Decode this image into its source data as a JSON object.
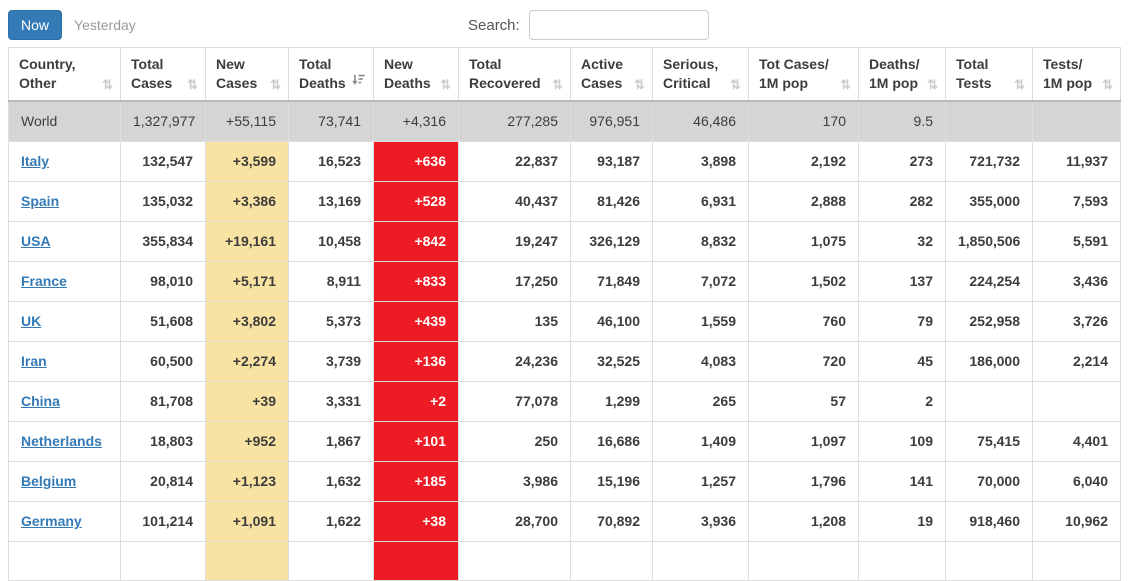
{
  "toolbar": {
    "now_label": "Now",
    "yesterday_label": "Yesterday",
    "search_label": "Search:",
    "search_value": ""
  },
  "icons": {
    "sort_unsorted": "⇅",
    "sort_active": "sort-descending"
  },
  "colors": {
    "accent": "#337ab7",
    "new_cases_bg": "#F8E3A3",
    "new_deaths_bg": "#ED1C24",
    "world_row_bg": "#D5D5D5"
  },
  "table": {
    "columns": [
      {
        "line1": "Country,",
        "line2": "Other",
        "sorted": false
      },
      {
        "line1": "Total",
        "line2": "Cases",
        "sorted": false
      },
      {
        "line1": "New",
        "line2": "Cases",
        "sorted": false
      },
      {
        "line1": "Total",
        "line2": "Deaths",
        "sorted": true
      },
      {
        "line1": "New",
        "line2": "Deaths",
        "sorted": false
      },
      {
        "line1": "Total",
        "line2": "Recovered",
        "sorted": false
      },
      {
        "line1": "Active",
        "line2": "Cases",
        "sorted": false
      },
      {
        "line1": "Serious,",
        "line2": "Critical",
        "sorted": false
      },
      {
        "line1": "Tot Cases/",
        "line2": "1M pop",
        "sorted": false
      },
      {
        "line1": "Deaths/",
        "line2": "1M pop",
        "sorted": false
      },
      {
        "line1": "Total",
        "line2": "Tests",
        "sorted": false
      },
      {
        "line1": "Tests/",
        "line2": "1M pop",
        "sorted": false
      }
    ],
    "rows": [
      {
        "country": "World",
        "is_link": false,
        "total_cases": "1,327,977",
        "new_cases": "+55,115",
        "total_deaths": "73,741",
        "new_deaths": "+4,316",
        "total_recovered": "277,285",
        "active_cases": "976,951",
        "serious_critical": "46,486",
        "cases_per_1m": "170",
        "deaths_per_1m": "9.5",
        "total_tests": "",
        "tests_per_1m": ""
      },
      {
        "country": "Italy",
        "is_link": true,
        "total_cases": "132,547",
        "new_cases": "+3,599",
        "total_deaths": "16,523",
        "new_deaths": "+636",
        "total_recovered": "22,837",
        "active_cases": "93,187",
        "serious_critical": "3,898",
        "cases_per_1m": "2,192",
        "deaths_per_1m": "273",
        "total_tests": "721,732",
        "tests_per_1m": "11,937"
      },
      {
        "country": "Spain",
        "is_link": true,
        "total_cases": "135,032",
        "new_cases": "+3,386",
        "total_deaths": "13,169",
        "new_deaths": "+528",
        "total_recovered": "40,437",
        "active_cases": "81,426",
        "serious_critical": "6,931",
        "cases_per_1m": "2,888",
        "deaths_per_1m": "282",
        "total_tests": "355,000",
        "tests_per_1m": "7,593"
      },
      {
        "country": "USA",
        "is_link": true,
        "total_cases": "355,834",
        "new_cases": "+19,161",
        "total_deaths": "10,458",
        "new_deaths": "+842",
        "total_recovered": "19,247",
        "active_cases": "326,129",
        "serious_critical": "8,832",
        "cases_per_1m": "1,075",
        "deaths_per_1m": "32",
        "total_tests": "1,850,506",
        "tests_per_1m": "5,591"
      },
      {
        "country": "France",
        "is_link": true,
        "total_cases": "98,010",
        "new_cases": "+5,171",
        "total_deaths": "8,911",
        "new_deaths": "+833",
        "total_recovered": "17,250",
        "active_cases": "71,849",
        "serious_critical": "7,072",
        "cases_per_1m": "1,502",
        "deaths_per_1m": "137",
        "total_tests": "224,254",
        "tests_per_1m": "3,436"
      },
      {
        "country": "UK",
        "is_link": true,
        "total_cases": "51,608",
        "new_cases": "+3,802",
        "total_deaths": "5,373",
        "new_deaths": "+439",
        "total_recovered": "135",
        "active_cases": "46,100",
        "serious_critical": "1,559",
        "cases_per_1m": "760",
        "deaths_per_1m": "79",
        "total_tests": "252,958",
        "tests_per_1m": "3,726"
      },
      {
        "country": "Iran",
        "is_link": true,
        "total_cases": "60,500",
        "new_cases": "+2,274",
        "total_deaths": "3,739",
        "new_deaths": "+136",
        "total_recovered": "24,236",
        "active_cases": "32,525",
        "serious_critical": "4,083",
        "cases_per_1m": "720",
        "deaths_per_1m": "45",
        "total_tests": "186,000",
        "tests_per_1m": "2,214"
      },
      {
        "country": "China",
        "is_link": true,
        "total_cases": "81,708",
        "new_cases": "+39",
        "total_deaths": "3,331",
        "new_deaths": "+2",
        "total_recovered": "77,078",
        "active_cases": "1,299",
        "serious_critical": "265",
        "cases_per_1m": "57",
        "deaths_per_1m": "2",
        "total_tests": "",
        "tests_per_1m": ""
      },
      {
        "country": "Netherlands",
        "is_link": true,
        "total_cases": "18,803",
        "new_cases": "+952",
        "total_deaths": "1,867",
        "new_deaths": "+101",
        "total_recovered": "250",
        "active_cases": "16,686",
        "serious_critical": "1,409",
        "cases_per_1m": "1,097",
        "deaths_per_1m": "109",
        "total_tests": "75,415",
        "tests_per_1m": "4,401"
      },
      {
        "country": "Belgium",
        "is_link": true,
        "total_cases": "20,814",
        "new_cases": "+1,123",
        "total_deaths": "1,632",
        "new_deaths": "+185",
        "total_recovered": "3,986",
        "active_cases": "15,196",
        "serious_critical": "1,257",
        "cases_per_1m": "1,796",
        "deaths_per_1m": "141",
        "total_tests": "70,000",
        "tests_per_1m": "6,040"
      },
      {
        "country": "Germany",
        "is_link": true,
        "total_cases": "101,214",
        "new_cases": "+1,091",
        "total_deaths": "1,622",
        "new_deaths": "+38",
        "total_recovered": "28,700",
        "active_cases": "70,892",
        "serious_critical": "3,936",
        "cases_per_1m": "1,208",
        "deaths_per_1m": "19",
        "total_tests": "918,460",
        "tests_per_1m": "10,962"
      }
    ]
  }
}
